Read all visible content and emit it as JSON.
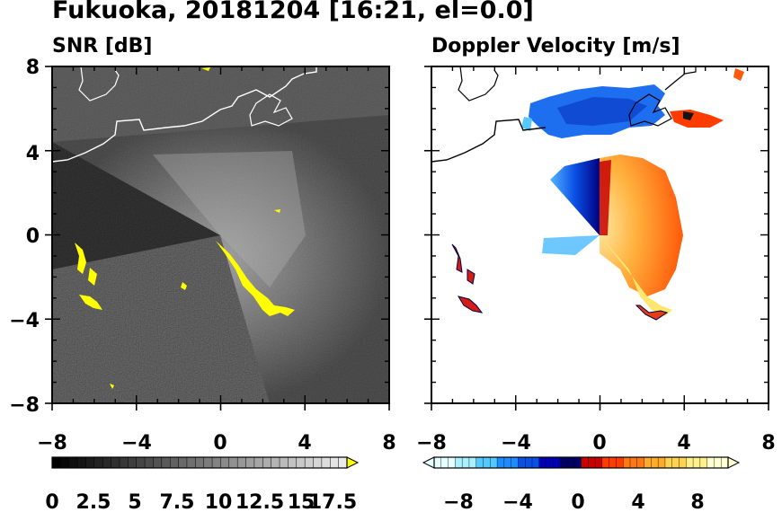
{
  "title": "Fukuoka, 20181204 [16:21, el=0.0]",
  "chart_data": [
    {
      "type": "heatmap",
      "panel_title": "SNR [dB]",
      "xlim": [
        -8,
        8
      ],
      "ylim": [
        -8,
        8
      ],
      "x_ticks": [
        "−8",
        "−4",
        "0",
        "4",
        "8"
      ],
      "y_ticks": [
        "8",
        "4",
        "0",
        "−4",
        "−8"
      ],
      "colorbar": {
        "min": 0,
        "max": 17.5,
        "extend": "max",
        "tick_labels": [
          "0",
          "2.5",
          "5",
          "7.5",
          "10",
          "12.5",
          "15",
          "17.5"
        ],
        "color_low": "#000000",
        "color_high": "#ffffff",
        "color_over": "#ffff00"
      },
      "background_color": "#1a1a1a"
    },
    {
      "type": "heatmap",
      "panel_title": "Doppler Velocity [m/s]",
      "xlim": [
        -8,
        8
      ],
      "ylim": [
        -8,
        8
      ],
      "x_ticks": [
        "−8",
        "−4",
        "0",
        "4",
        "8"
      ],
      "y_ticks": [
        "8",
        "4",
        "0",
        "−4",
        "−8"
      ],
      "colorbar": {
        "min": -10,
        "max": 10,
        "extend": "both",
        "tick_labels": [
          "−8",
          "−4",
          "0",
          "4",
          "8"
        ],
        "colors_negative": [
          "#e6ffff",
          "#aaf0ff",
          "#55c8ff",
          "#1e8cff",
          "#0a50e6",
          "#0000b4",
          "#000064"
        ],
        "colors_positive": [
          "#c80000",
          "#ff3c00",
          "#ff7814",
          "#ffaa28",
          "#ffd250",
          "#fff08c",
          "#ffffd2"
        ]
      },
      "background_color": "#ffffff"
    }
  ]
}
